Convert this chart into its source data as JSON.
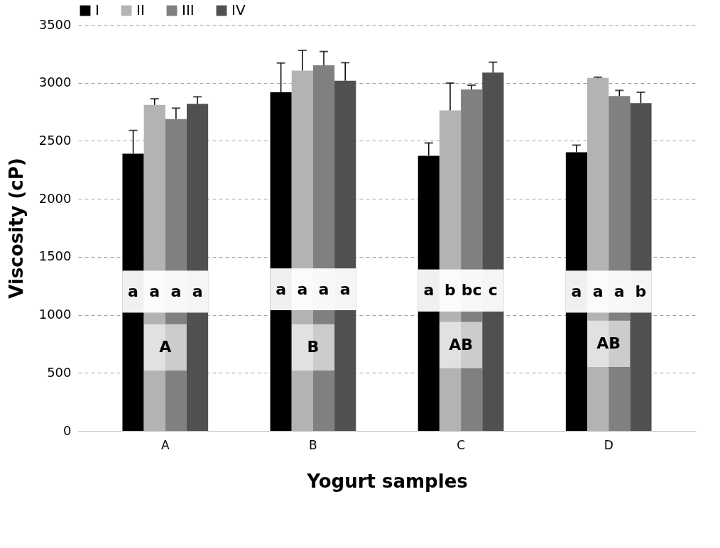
{
  "chart_data": {
    "type": "bar",
    "xlabel": "Yogurt samples",
    "ylabel": "Viscosity (cP)",
    "categories": [
      "A",
      "B",
      "C",
      "D"
    ],
    "series": [
      {
        "name": "I",
        "color": "#000000",
        "values": [
          2390,
          2918,
          2371,
          2402
        ],
        "errors": [
          [
            2390,
            2590
          ],
          [
            2918,
            3171
          ],
          [
            2371,
            2482
          ],
          [
            2402,
            2463
          ]
        ]
      },
      {
        "name": "II",
        "color": "#b3b3b3",
        "values": [
          2810,
          3106,
          2763,
          3043
        ],
        "errors": [
          [
            2810,
            2863
          ],
          [
            3106,
            3280
          ],
          [
            2763,
            2998
          ],
          [
            3043,
            3049
          ]
        ]
      },
      {
        "name": "III",
        "color": "#808080",
        "values": [
          2688,
          3151,
          2943,
          2886
        ],
        "errors": [
          [
            2688,
            2782
          ],
          [
            3151,
            3270
          ],
          [
            2943,
            2980
          ],
          [
            2886,
            2935
          ]
        ]
      },
      {
        "name": "IV",
        "color": "#505050",
        "values": [
          2820,
          3018,
          3088,
          2825
        ],
        "errors": [
          [
            2820,
            2880
          ],
          [
            3018,
            3174
          ],
          [
            3088,
            3178
          ],
          [
            2825,
            2919
          ]
        ]
      }
    ],
    "ylim": [
      0,
      3500
    ],
    "yticks": [
      0,
      500,
      1000,
      1500,
      2000,
      2500,
      3000,
      3500
    ],
    "grid": "y",
    "legend": "top",
    "annotations": [
      {
        "text": "a a a a",
        "x": "A",
        "y": 1200
      },
      {
        "text": "a a a a",
        "x": "B",
        "y": 1220
      },
      {
        "text": "a b bc c",
        "x": "C",
        "y": 1210
      },
      {
        "text": "a a a b",
        "x": "D",
        "y": 1200
      },
      {
        "text": "A",
        "x": "A",
        "y": 720
      },
      {
        "text": "B",
        "x": "B",
        "y": 720
      },
      {
        "text": "AB",
        "x": "C",
        "y": 740
      },
      {
        "text": "AB",
        "x": "D",
        "y": 750
      }
    ]
  }
}
